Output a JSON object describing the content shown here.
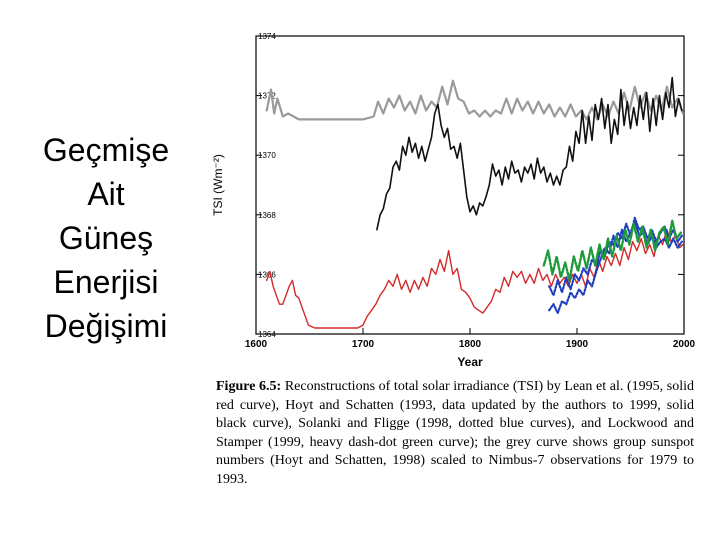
{
  "slide": {
    "title_lines": [
      "Geçmişe",
      "Ait",
      "Güneş",
      "Enerjisi",
      "Değişimi"
    ]
  },
  "caption": {
    "label": "Figure 6.5:",
    "text": "Reconstructions of total solar irradiance (TSI) by Lean et al. (1995, solid red curve), Hoyt and Schatten (1993, data updated by the authors to 1999, solid black curve), Solanki and Fligge (1998, dotted blue curves), and Lockwood and Stamper (1999, heavy dash-dot green curve); the grey curve shows group sunspot numbers (Hoyt and Schatten, 1998) scaled to Nimbus-7 observations for 1979 to 1993."
  },
  "chart_data": {
    "type": "line",
    "title": "",
    "xlabel": "Year",
    "ylabel": "TSI (Wm⁻²)",
    "xlim": [
      1600,
      2000
    ],
    "ylim": [
      1364,
      1374
    ],
    "xticks": [
      1600,
      1700,
      1800,
      1900,
      2000
    ],
    "yticks": [
      1364,
      1366,
      1368,
      1370,
      1372,
      1374
    ],
    "grid": false,
    "legend": "none",
    "series": [
      {
        "color": "#9a9a9a",
        "style": "solid",
        "width": 2.2,
        "x": [
          1610,
          1614,
          1617,
          1620,
          1625,
          1630,
          1640,
          1650,
          1670,
          1690,
          1700,
          1710,
          1714,
          1719,
          1724,
          1729,
          1734,
          1739,
          1744,
          1749,
          1754,
          1759,
          1764,
          1769,
          1774,
          1779,
          1784,
          1789,
          1794,
          1799,
          1804,
          1809,
          1814,
          1819,
          1824,
          1829,
          1834,
          1839,
          1844,
          1849,
          1854,
          1859,
          1864,
          1869,
          1874,
          1879,
          1884,
          1889,
          1894,
          1899,
          1904,
          1909,
          1914,
          1919,
          1924,
          1929,
          1934,
          1939,
          1944,
          1949,
          1954,
          1959,
          1964,
          1969,
          1974,
          1979,
          1984,
          1989,
          1994,
          1999
        ],
        "y": [
          1371.5,
          1372.2,
          1371.4,
          1371.9,
          1371.3,
          1371.4,
          1371.2,
          1371.2,
          1371.2,
          1371.2,
          1371.2,
          1371.3,
          1371.8,
          1371.4,
          1371.9,
          1371.6,
          1372.0,
          1371.5,
          1371.8,
          1371.4,
          1372.0,
          1371.5,
          1371.8,
          1371.6,
          1372.3,
          1371.7,
          1372.5,
          1371.9,
          1371.8,
          1371.4,
          1371.5,
          1371.3,
          1371.5,
          1371.3,
          1371.5,
          1371.4,
          1371.9,
          1371.4,
          1371.9,
          1371.5,
          1371.8,
          1371.4,
          1371.8,
          1371.4,
          1371.7,
          1371.3,
          1371.6,
          1371.3,
          1371.7,
          1371.3,
          1371.5,
          1371.2,
          1371.6,
          1371.2,
          1371.7,
          1371.3,
          1371.8,
          1371.4,
          1372.1,
          1371.5,
          1372.3,
          1371.6,
          1372.1,
          1371.5,
          1372.0,
          1371.5,
          1372.3,
          1371.6,
          1371.9,
          1371.4
        ]
      },
      {
        "color": "#111111",
        "style": "solid",
        "width": 1.6,
        "x": [
          1713,
          1716,
          1719,
          1722,
          1725,
          1728,
          1731,
          1734,
          1737,
          1740,
          1743,
          1746,
          1749,
          1752,
          1755,
          1758,
          1761,
          1764,
          1767,
          1770,
          1773,
          1776,
          1779,
          1782,
          1785,
          1788,
          1791,
          1794,
          1797,
          1800,
          1803,
          1806,
          1809,
          1812,
          1815,
          1818,
          1821,
          1824,
          1827,
          1830,
          1833,
          1836,
          1839,
          1842,
          1845,
          1848,
          1851,
          1854,
          1857,
          1860,
          1863,
          1866,
          1869,
          1872,
          1875,
          1878,
          1881,
          1884,
          1887,
          1890,
          1893,
          1896,
          1899,
          1902,
          1905,
          1908,
          1911,
          1914,
          1917,
          1920,
          1923,
          1926,
          1929,
          1932,
          1935,
          1938,
          1941,
          1944,
          1947,
          1950,
          1953,
          1956,
          1959,
          1962,
          1965,
          1968,
          1971,
          1974,
          1977,
          1980,
          1983,
          1986,
          1989,
          1992,
          1995,
          1998
        ],
        "y": [
          1367.5,
          1368.0,
          1368.2,
          1368.7,
          1368.9,
          1369.6,
          1369.8,
          1369.5,
          1370.3,
          1370.0,
          1370.6,
          1370.1,
          1370.4,
          1369.9,
          1370.3,
          1369.8,
          1370.2,
          1370.6,
          1371.4,
          1371.7,
          1371.0,
          1370.6,
          1370.9,
          1370.2,
          1370.3,
          1369.9,
          1370.4,
          1369.5,
          1368.6,
          1368.1,
          1368.3,
          1368.0,
          1368.4,
          1368.3,
          1368.6,
          1369.0,
          1369.7,
          1369.3,
          1369.5,
          1369.0,
          1369.6,
          1369.2,
          1369.8,
          1369.4,
          1369.5,
          1369.1,
          1369.6,
          1369.4,
          1369.7,
          1369.2,
          1369.9,
          1369.4,
          1369.6,
          1369.1,
          1369.4,
          1369.0,
          1369.3,
          1369.0,
          1369.5,
          1369.6,
          1370.3,
          1369.8,
          1370.8,
          1370.4,
          1371.5,
          1370.4,
          1371.3,
          1370.5,
          1371.7,
          1371.2,
          1371.9,
          1370.9,
          1371.7,
          1370.4,
          1371.2,
          1370.7,
          1372.2,
          1371.0,
          1371.8,
          1370.9,
          1371.6,
          1371.0,
          1372.0,
          1371.2,
          1372.1,
          1370.8,
          1371.9,
          1371.0,
          1372.0,
          1371.2,
          1372.1,
          1371.6,
          1372.6,
          1371.3,
          1371.9,
          1371.5
        ]
      },
      {
        "color": "#d42a2a",
        "style": "solid",
        "width": 1.4,
        "x": [
          1610,
          1613,
          1616,
          1619,
          1622,
          1625,
          1628,
          1631,
          1634,
          1637,
          1640,
          1643,
          1646,
          1649,
          1655,
          1665,
          1675,
          1685,
          1695,
          1700,
          1704,
          1708,
          1712,
          1716,
          1720,
          1724,
          1728,
          1732,
          1736,
          1740,
          1744,
          1748,
          1752,
          1756,
          1760,
          1764,
          1768,
          1772,
          1776,
          1780,
          1784,
          1788,
          1792,
          1796,
          1800,
          1804,
          1808,
          1812,
          1816,
          1820,
          1824,
          1828,
          1832,
          1836,
          1840,
          1844,
          1848,
          1852,
          1856,
          1860,
          1864,
          1868,
          1872,
          1876,
          1880,
          1884,
          1888,
          1892,
          1896,
          1900,
          1904,
          1908,
          1912,
          1916,
          1920,
          1924,
          1928,
          1932,
          1936,
          1940,
          1944,
          1948,
          1952,
          1956,
          1960,
          1964,
          1968,
          1972,
          1976,
          1980,
          1984,
          1988,
          1992,
          1996,
          1999
        ],
        "y": [
          1365.8,
          1366.1,
          1365.6,
          1365.3,
          1365.0,
          1365.0,
          1365.3,
          1365.6,
          1365.8,
          1365.3,
          1365.2,
          1364.9,
          1364.6,
          1364.3,
          1364.2,
          1364.2,
          1364.2,
          1364.2,
          1364.2,
          1364.3,
          1364.6,
          1364.8,
          1365.0,
          1365.3,
          1365.5,
          1365.8,
          1365.6,
          1366.0,
          1365.5,
          1365.8,
          1365.4,
          1365.8,
          1365.5,
          1365.9,
          1365.6,
          1366.2,
          1366.0,
          1366.5,
          1366.1,
          1366.8,
          1366.0,
          1366.2,
          1365.5,
          1365.4,
          1365.2,
          1364.9,
          1364.8,
          1364.7,
          1364.9,
          1365.1,
          1365.5,
          1365.4,
          1365.9,
          1365.6,
          1366.1,
          1365.9,
          1366.1,
          1365.7,
          1366.0,
          1365.7,
          1366.2,
          1365.8,
          1366.0,
          1365.6,
          1366.0,
          1365.7,
          1365.9,
          1365.6,
          1366.0,
          1365.7,
          1366.0,
          1365.6,
          1366.2,
          1365.9,
          1366.5,
          1366.1,
          1366.6,
          1366.3,
          1366.7,
          1366.3,
          1366.9,
          1366.5,
          1367.1,
          1366.8,
          1367.2,
          1366.7,
          1367.0,
          1366.6,
          1367.3,
          1367.0,
          1367.5,
          1367.1,
          1367.3,
          1366.9,
          1367.0
        ]
      },
      {
        "color": "#1f3fbf",
        "style": "dotted",
        "width": 2.2,
        "x": [
          1874,
          1878,
          1882,
          1886,
          1890,
          1894,
          1898,
          1902,
          1906,
          1910,
          1914,
          1918,
          1922,
          1926,
          1930,
          1934,
          1938,
          1942,
          1946,
          1950,
          1954,
          1958,
          1962,
          1966,
          1970,
          1974,
          1978,
          1982,
          1986,
          1990,
          1994,
          1998
        ],
        "y": [
          1364.8,
          1365.0,
          1364.7,
          1365.1,
          1365.0,
          1365.4,
          1365.2,
          1365.5,
          1365.3,
          1365.8,
          1365.6,
          1366.1,
          1366.5,
          1366.9,
          1366.7,
          1367.3,
          1366.9,
          1367.5,
          1367.1,
          1367.4,
          1367.8,
          1367.3,
          1367.4,
          1367.0,
          1367.3,
          1366.9,
          1367.1,
          1367.2,
          1366.9,
          1367.2,
          1366.9,
          1367.1
        ]
      },
      {
        "color": "#1f3fbf",
        "style": "dotted",
        "width": 2.2,
        "x": [
          1874,
          1878,
          1882,
          1886,
          1890,
          1894,
          1898,
          1902,
          1906,
          1910,
          1914,
          1918,
          1922,
          1926,
          1930,
          1934,
          1938,
          1942,
          1946,
          1950,
          1954,
          1958,
          1962,
          1966,
          1970,
          1974,
          1978,
          1982,
          1986,
          1990,
          1994,
          1998
        ],
        "y": [
          1365.6,
          1365.3,
          1365.8,
          1365.4,
          1365.9,
          1365.5,
          1366.0,
          1365.8,
          1366.2,
          1366.0,
          1366.5,
          1366.3,
          1366.8,
          1366.6,
          1367.1,
          1367.0,
          1367.4,
          1367.2,
          1367.7,
          1367.3,
          1367.9,
          1367.5,
          1367.6,
          1367.2,
          1367.5,
          1367.1,
          1367.4,
          1367.6,
          1367.2,
          1367.5,
          1367.1,
          1367.3
        ]
      },
      {
        "color": "#1e9a3a",
        "style": "dashdot",
        "width": 2.4,
        "x": [
          1869,
          1873,
          1877,
          1881,
          1885,
          1889,
          1893,
          1897,
          1901,
          1905,
          1909,
          1913,
          1917,
          1921,
          1925,
          1929,
          1933,
          1937,
          1941,
          1945,
          1949,
          1953,
          1957,
          1961,
          1965,
          1969,
          1973,
          1977,
          1981,
          1985,
          1989,
          1993,
          1997
        ],
        "y": [
          1366.3,
          1366.8,
          1366.0,
          1366.6,
          1365.9,
          1366.4,
          1365.8,
          1366.6,
          1366.1,
          1366.8,
          1366.2,
          1366.9,
          1366.3,
          1367.0,
          1366.5,
          1367.2,
          1366.6,
          1367.3,
          1366.8,
          1367.5,
          1367.0,
          1367.7,
          1367.1,
          1367.6,
          1366.9,
          1367.5,
          1366.8,
          1367.4,
          1367.6,
          1367.0,
          1367.8,
          1367.2,
          1367.4
        ]
      }
    ]
  }
}
